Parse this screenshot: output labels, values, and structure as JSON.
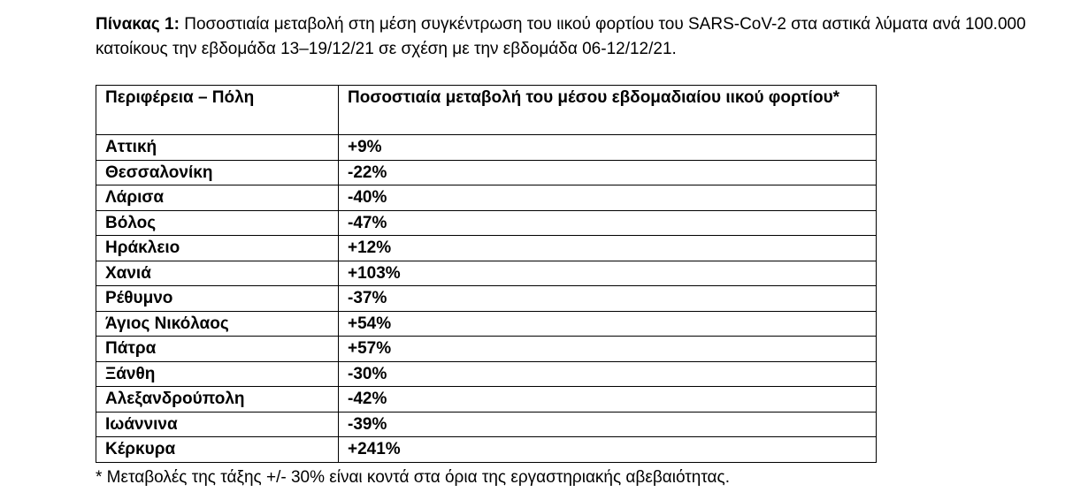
{
  "caption": {
    "label": "Πίνακας 1:",
    "text": " Ποσοστιαία μεταβολή στη μέση συγκέντρωση του ιικού φορτίου του SARS-CoV-2 στα αστικά λύματα ανά 100.000 κατοίκους την εβδομάδα 13–19/12/21 σε σχέση με την εβδομάδα 06-12/12/21."
  },
  "table": {
    "headers": {
      "region": "Περιφέρεια – Πόλη",
      "change": "Ποσοστιαία μεταβολή του μέσου εβδομαδιαίου ιικού φορτίου*"
    },
    "rows": [
      {
        "region": "Αττική",
        "change": "+9%"
      },
      {
        "region": "Θεσσαλονίκη",
        "change": "-22%"
      },
      {
        "region": "Λάρισα",
        "change": "-40%"
      },
      {
        "region": "Βόλος",
        "change": "-47%"
      },
      {
        "region": "Ηράκλειο",
        "change": "+12%"
      },
      {
        "region": "Χανιά",
        "change": "+103%"
      },
      {
        "region": "Ρέθυμνο",
        "change": "-37%"
      },
      {
        "region": "Άγιος Νικόλαος",
        "change": "+54%"
      },
      {
        "region": "Πάτρα",
        "change": "+57%"
      },
      {
        "region": "Ξάνθη",
        "change": "-30%"
      },
      {
        "region": "Αλεξανδρούπολη",
        "change": "-42%"
      },
      {
        "region": "Ιωάννινα",
        "change": "-39%"
      },
      {
        "region": "Κέρκυρα",
        "change": "+241%"
      }
    ]
  },
  "footnote": "* Μεταβολές της τάξης +/- 30% είναι κοντά στα όρια της εργαστηριακής αβεβαιότητας."
}
